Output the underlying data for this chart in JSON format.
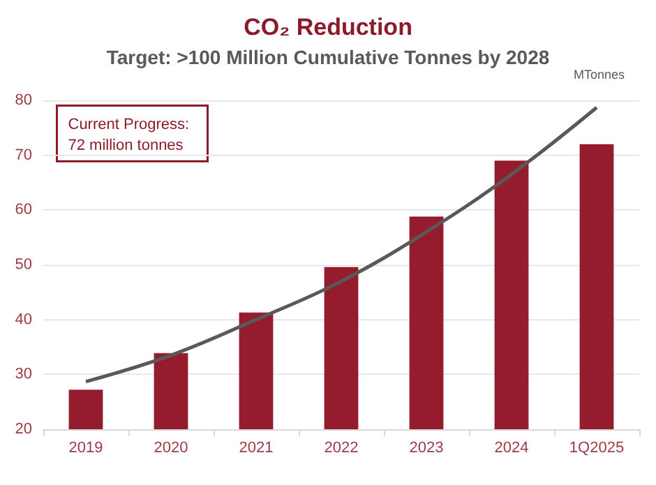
{
  "chart_data": {
    "type": "bar",
    "title": "CO₂ Reduction",
    "subtitle": "Target: >100 Million Cumulative Tonnes by 2028",
    "ylabel": "MTonnes",
    "annotations": [
      "Current Progress:\n72 million tonnes"
    ],
    "categories": [
      "2019",
      "2020",
      "2021",
      "2022",
      "2023",
      "2024",
      "1Q2025"
    ],
    "series": [
      {
        "color": "#941c2c",
        "values": [
          27.2,
          33.9,
          41.3,
          49.6,
          58.8,
          69,
          72
        ]
      },
      {
        "type": "line",
        "color": "#595959",
        "values": [
          28.7,
          33.5,
          40,
          47,
          56,
          66.5,
          78.7
        ]
      }
    ],
    "ylim": [
      20,
      80
    ],
    "yticks": [
      20,
      30,
      40,
      50,
      60,
      70,
      80
    ],
    "grid": "y",
    "marker": "none"
  }
}
